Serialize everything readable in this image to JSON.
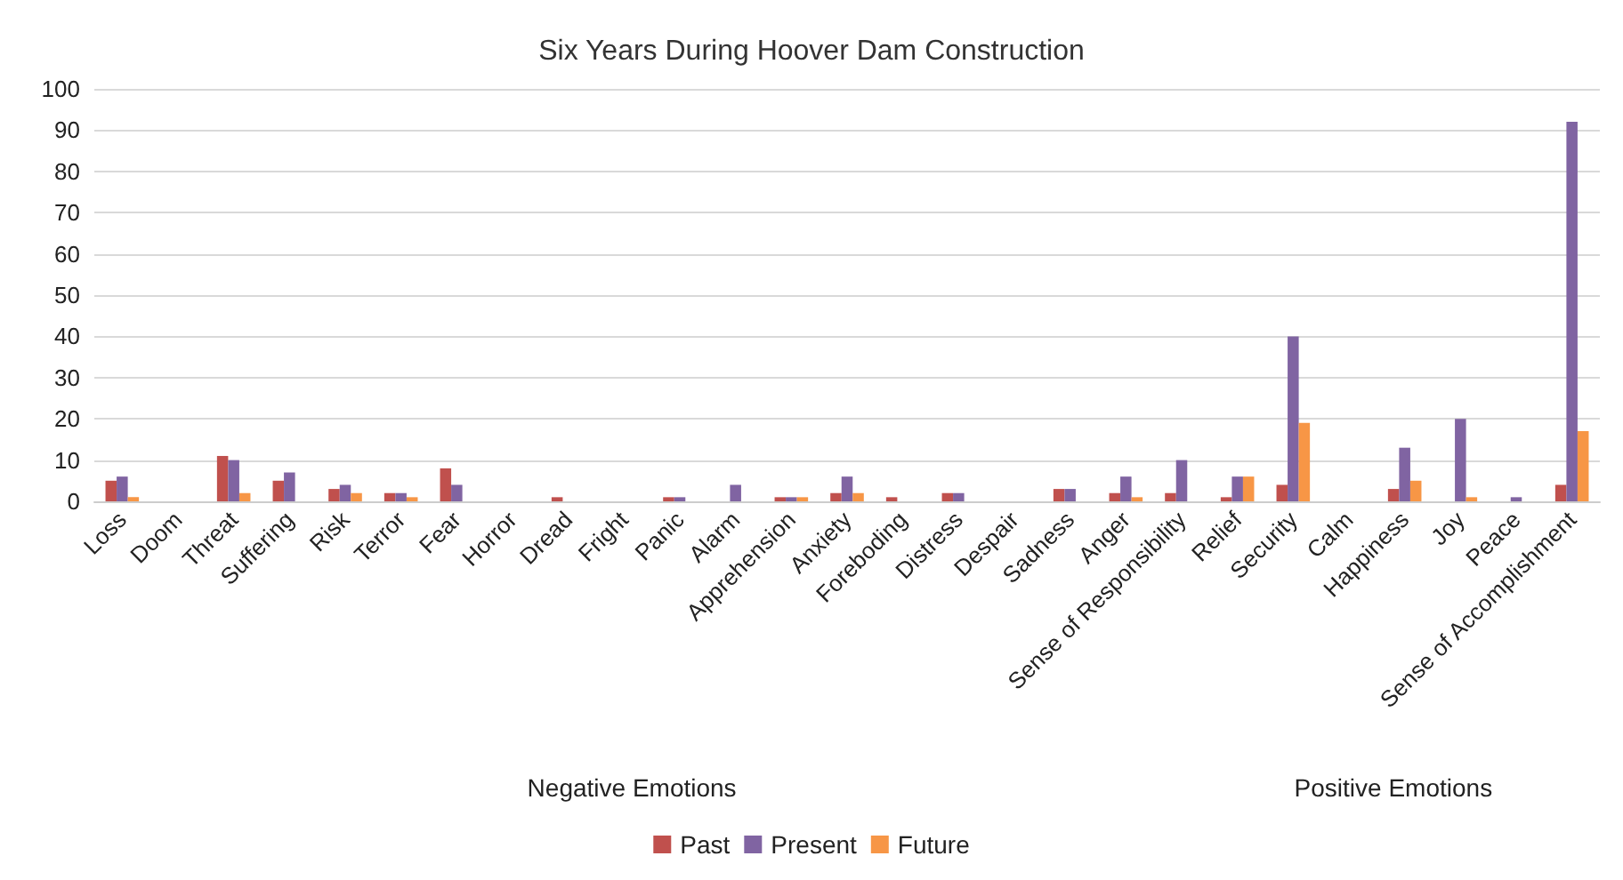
{
  "chart_data": {
    "type": "bar",
    "title": "Six Years During Hoover Dam Construction",
    "categories": [
      "Loss",
      "Doom",
      "Threat",
      "Suffering",
      "Risk",
      "Terror",
      "Fear",
      "Horror",
      "Dread",
      "Fright",
      "Panic",
      "Alarm",
      "Apprehension",
      "Anxiety",
      "Foreboding",
      "Distress",
      "Despair",
      "Sadness",
      "Anger",
      "Sense of Responsibility",
      "Relief",
      "Security",
      "Calm",
      "Happiness",
      "Joy",
      "Peace",
      "Sense of Accomplishment"
    ],
    "series": [
      {
        "name": "Past",
        "color": "#c0504d",
        "values": [
          5,
          0,
          11,
          5,
          3,
          2,
          8,
          0,
          1,
          0,
          1,
          0,
          1,
          2,
          1,
          2,
          0,
          3,
          2,
          2,
          1,
          4,
          0,
          3,
          0,
          0,
          4
        ]
      },
      {
        "name": "Present",
        "color": "#8064a2",
        "values": [
          6,
          0,
          10,
          7,
          4,
          2,
          4,
          0,
          0,
          0,
          1,
          4,
          1,
          6,
          0,
          2,
          0,
          3,
          6,
          10,
          6,
          40,
          0,
          13,
          20,
          1,
          92
        ]
      },
      {
        "name": "Future",
        "color": "#f79646",
        "values": [
          1,
          0,
          2,
          0,
          2,
          1,
          0,
          0,
          0,
          0,
          0,
          0,
          1,
          2,
          0,
          0,
          0,
          0,
          1,
          0,
          6,
          19,
          0,
          5,
          1,
          0,
          17
        ]
      }
    ],
    "ylim": [
      0,
      100
    ],
    "yticks": [
      0,
      10,
      20,
      30,
      40,
      50,
      60,
      70,
      80,
      90,
      100
    ],
    "grid": "y",
    "legend": "bottom",
    "annotations": [
      "Negative Emotions",
      "Positive Emotions"
    ]
  }
}
